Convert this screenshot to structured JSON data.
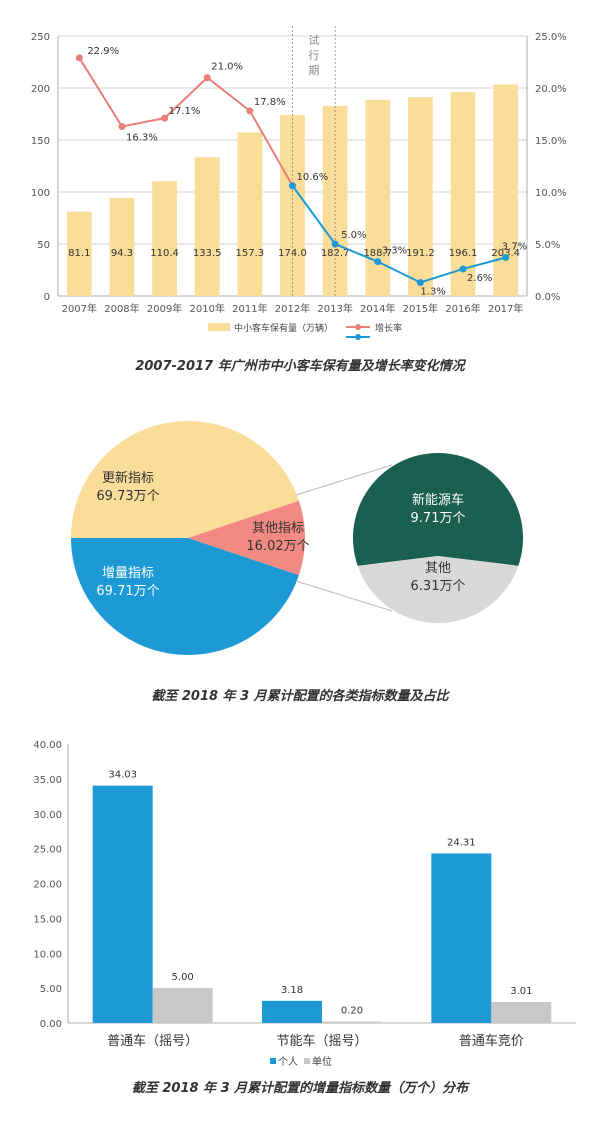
{
  "chart_data": [
    {
      "type": "bar+line",
      "caption": "2007-2017 年广州市中小客车保有量及增长率变化情况",
      "categories": [
        "2007年",
        "2008年",
        "2009年",
        "2010年",
        "2011年",
        "2012年",
        "2013年",
        "2014年",
        "2015年",
        "2016年",
        "2017年"
      ],
      "series": [
        {
          "name": "中小客车保有量（万辆）",
          "type": "bar",
          "axis": "left",
          "values": [
            81.1,
            94.3,
            110.4,
            133.5,
            157.3,
            174.0,
            182.7,
            188.7,
            191.2,
            196.1,
            203.4
          ],
          "labels": [
            "81.1",
            "94.3",
            "110.4",
            "133.5",
            "157.3",
            "174.0",
            "182.7",
            "188.7",
            "191.2",
            "196.1",
            "203.4"
          ]
        },
        {
          "name": "增长率",
          "type": "line",
          "axis": "right",
          "values": [
            22.9,
            16.3,
            17.1,
            21.0,
            17.8,
            10.6,
            5.0,
            3.3,
            1.3,
            2.6,
            3.7
          ],
          "labels": [
            "22.9%",
            "16.3%",
            "17.1%",
            "21.0%",
            "17.8%",
            "10.6%",
            "5.0%",
            "3.3%",
            "1.3%",
            "2.6%",
            "3.7%"
          ]
        }
      ],
      "ylim_left": [
        0,
        250
      ],
      "yticks_left": [
        "0",
        "50",
        "100",
        "150",
        "200",
        "250"
      ],
      "ylim_right": [
        0,
        25
      ],
      "yticks_right": [
        "0.0%",
        "5.0%",
        "10.0%",
        "15.0%",
        "20.0%",
        "25.0%"
      ],
      "annotation": {
        "text": "试行期",
        "from": "2012年",
        "to": "2013年"
      },
      "legend_position": "bottom",
      "colors": {
        "bar": "#F9DD98",
        "line_before": "#E87F78",
        "line_after": "#1D9AD6",
        "grid": "#C8C8C8"
      }
    },
    {
      "type": "pie",
      "caption": "截至 2018 年 3 月累计配置的各类指标数量及占比",
      "slices": [
        {
          "name": "更新指标",
          "value": 69.73,
          "label": "69.73万个",
          "color": "#F9DD98"
        },
        {
          "name": "其他指标",
          "value": 16.02,
          "label": "16.02万个",
          "color": "#F08A82"
        },
        {
          "name": "增量指标",
          "value": 69.71,
          "label": "69.71万个",
          "color": "#1D9AD6"
        }
      ],
      "breakdown": {
        "of": "其他指标",
        "slices": [
          {
            "name": "新能源车",
            "value": 9.71,
            "label": "9.71万个",
            "color": "#1A5F50"
          },
          {
            "name": "其他",
            "value": 6.31,
            "label": "6.31万个",
            "color": "#D8D8D8"
          }
        ]
      }
    },
    {
      "type": "bar",
      "caption": "截至 2018 年 3 月累计配置的增量指标数量（万个）分布",
      "categories": [
        "普通车（摇号）",
        "节能车（摇号）",
        "普通车竞价"
      ],
      "series": [
        {
          "name": "个人",
          "values": [
            34.03,
            3.18,
            24.31
          ],
          "labels": [
            "34.03",
            "3.18",
            "24.31"
          ],
          "color": "#1D9AD6"
        },
        {
          "name": "单位",
          "values": [
            5.0,
            0.2,
            3.01
          ],
          "labels": [
            "5.00",
            "0.20",
            "3.01"
          ],
          "color": "#C8C8C8"
        }
      ],
      "ylim": [
        0,
        40
      ],
      "yticks": [
        "0.00",
        "5.00",
        "10.00",
        "15.00",
        "20.00",
        "25.00",
        "30.00",
        "35.00",
        "40.00"
      ],
      "legend_position": "bottom"
    }
  ]
}
